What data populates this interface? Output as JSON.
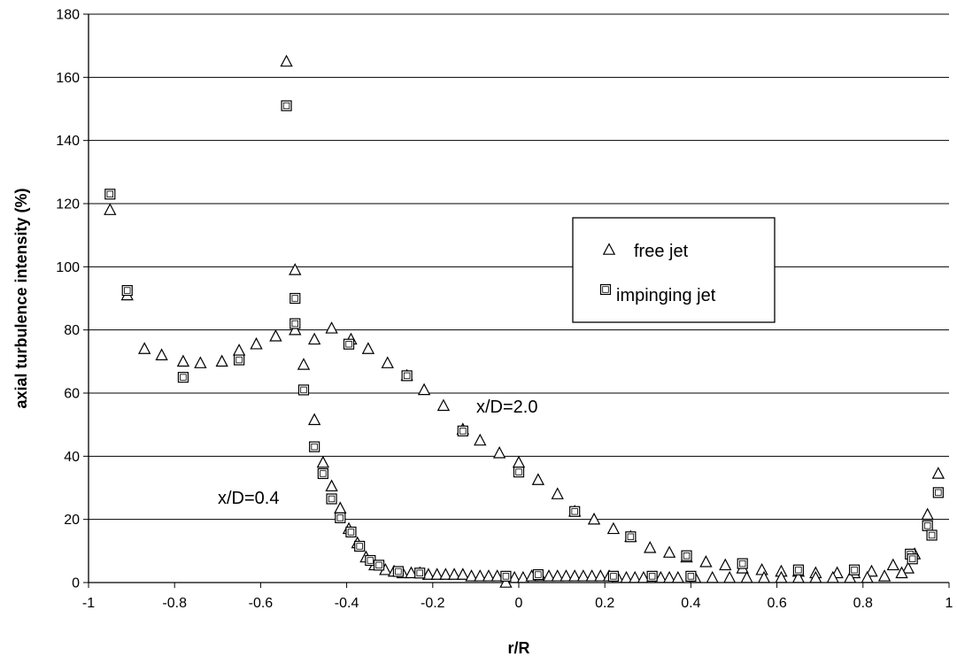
{
  "chart_data": {
    "type": "scatter",
    "title": "",
    "xlabel": "r/R",
    "ylabel": "axial turbulence intensity (%)",
    "xlim": [
      -1,
      1
    ],
    "ylim": [
      0,
      180
    ],
    "xticks": [
      "-1",
      "-0.8",
      "-0.6",
      "-0.4",
      "-0.2",
      "0",
      "0.2",
      "0.4",
      "0.6",
      "0.8",
      "1"
    ],
    "yticks": [
      "0",
      "20",
      "40",
      "60",
      "80",
      "100",
      "120",
      "140",
      "160",
      "180"
    ],
    "grid": "horizontal",
    "legend_position": "right",
    "legend": [
      {
        "label": "free jet",
        "marker": "triangle"
      },
      {
        "label": "impinging jet",
        "marker": "square"
      }
    ],
    "annotations": [
      {
        "text": "x/D=2.0"
      },
      {
        "text": "x/D=0.4"
      }
    ],
    "series": [
      {
        "name": "free jet",
        "marker": "triangle",
        "points": [
          [
            -0.95,
            118
          ],
          [
            -0.91,
            91
          ],
          [
            -0.87,
            74
          ],
          [
            -0.83,
            72
          ],
          [
            -0.78,
            70
          ],
          [
            -0.74,
            69.5
          ],
          [
            -0.69,
            70
          ],
          [
            -0.65,
            73.5
          ],
          [
            -0.61,
            75.5
          ],
          [
            -0.565,
            78
          ],
          [
            -0.52,
            80
          ],
          [
            -0.475,
            77
          ],
          [
            -0.435,
            80.5
          ],
          [
            -0.39,
            77
          ],
          [
            -0.35,
            74
          ],
          [
            -0.305,
            69.5
          ],
          [
            -0.26,
            65.5
          ],
          [
            -0.22,
            61
          ],
          [
            -0.175,
            56
          ],
          [
            -0.13,
            48.5
          ],
          [
            -0.09,
            45
          ],
          [
            -0.045,
            41
          ],
          [
            0.0,
            38
          ],
          [
            0.045,
            32.5
          ],
          [
            0.09,
            28
          ],
          [
            0.13,
            22.5
          ],
          [
            0.175,
            20
          ],
          [
            0.22,
            17
          ],
          [
            0.26,
            14.5
          ],
          [
            0.305,
            11
          ],
          [
            0.35,
            9.5
          ],
          [
            0.39,
            8
          ],
          [
            0.435,
            6.5
          ],
          [
            0.48,
            5.5
          ],
          [
            0.52,
            4.5
          ],
          [
            0.565,
            4
          ],
          [
            0.61,
            3.5
          ],
          [
            0.65,
            3.5
          ],
          [
            0.69,
            3
          ],
          [
            0.74,
            3
          ],
          [
            0.78,
            3
          ],
          [
            0.82,
            3.5
          ],
          [
            0.87,
            5.5
          ],
          [
            0.905,
            4.5
          ],
          [
            0.95,
            21.5
          ],
          [
            0.975,
            34.5
          ],
          [
            -0.52,
            99
          ],
          [
            -0.5,
            69
          ],
          [
            -0.475,
            51.5
          ],
          [
            -0.455,
            38
          ],
          [
            -0.435,
            30.5
          ],
          [
            -0.415,
            23.5
          ],
          [
            -0.395,
            17
          ],
          [
            -0.375,
            12.5
          ],
          [
            -0.355,
            8
          ],
          [
            -0.335,
            5.5
          ],
          [
            -0.31,
            4
          ],
          [
            -0.29,
            3.5
          ],
          [
            -0.27,
            3
          ],
          [
            -0.25,
            3
          ],
          [
            -0.23,
            3
          ],
          [
            -0.21,
            2.5
          ],
          [
            -0.19,
            2.5
          ],
          [
            -0.17,
            2.5
          ],
          [
            -0.15,
            2.5
          ],
          [
            -0.13,
            2.5
          ],
          [
            -0.11,
            2
          ],
          [
            -0.09,
            2
          ],
          [
            -0.07,
            2
          ],
          [
            -0.05,
            2
          ],
          [
            -0.03,
            0
          ],
          [
            -0.01,
            1.5
          ],
          [
            0.01,
            1.5
          ],
          [
            0.03,
            2
          ],
          [
            0.05,
            2
          ],
          [
            0.07,
            2
          ],
          [
            0.09,
            2
          ],
          [
            0.11,
            2
          ],
          [
            0.13,
            2
          ],
          [
            0.15,
            2
          ],
          [
            0.17,
            2
          ],
          [
            0.19,
            2
          ],
          [
            0.21,
            2
          ],
          [
            0.23,
            1.5
          ],
          [
            0.25,
            1.5
          ],
          [
            0.27,
            1.5
          ],
          [
            0.29,
            1.5
          ],
          [
            0.31,
            1.5
          ],
          [
            0.33,
            1.5
          ],
          [
            0.35,
            1.5
          ],
          [
            0.37,
            1.5
          ],
          [
            0.41,
            1.5
          ],
          [
            0.45,
            1.5
          ],
          [
            0.49,
            1.5
          ],
          [
            0.53,
            1.5
          ],
          [
            0.57,
            1.5
          ],
          [
            0.61,
            1.5
          ],
          [
            0.65,
            1.5
          ],
          [
            0.69,
            1.5
          ],
          [
            0.73,
            1.5
          ],
          [
            0.77,
            1.5
          ],
          [
            0.81,
            1.5
          ],
          [
            0.85,
            2
          ],
          [
            0.89,
            3
          ],
          [
            0.92,
            9
          ]
        ]
      },
      {
        "name": "impinging jet",
        "marker": "square",
        "points": [
          [
            -0.95,
            123
          ],
          [
            -0.91,
            92.5
          ],
          [
            -0.78,
            65
          ],
          [
            -0.65,
            70.5
          ],
          [
            -0.395,
            75.5
          ],
          [
            -0.26,
            65.5
          ],
          [
            -0.13,
            48
          ],
          [
            0.0,
            35
          ],
          [
            0.13,
            22.5
          ],
          [
            0.26,
            14.5
          ],
          [
            0.39,
            8.5
          ],
          [
            0.52,
            6
          ],
          [
            0.65,
            4
          ],
          [
            0.78,
            4
          ],
          [
            0.91,
            9
          ],
          [
            0.95,
            18
          ],
          [
            0.96,
            15
          ],
          [
            0.975,
            28.5
          ],
          [
            -0.54,
            151
          ],
          [
            -0.52,
            90
          ],
          [
            -0.52,
            82
          ],
          [
            -0.5,
            61
          ],
          [
            -0.475,
            43
          ],
          [
            -0.455,
            34.5
          ],
          [
            -0.435,
            26.5
          ],
          [
            -0.415,
            20.5
          ],
          [
            -0.39,
            16
          ],
          [
            -0.37,
            11.5
          ],
          [
            -0.345,
            7
          ],
          [
            -0.325,
            5.5
          ],
          [
            -0.28,
            3.5
          ],
          [
            -0.23,
            3
          ],
          [
            -0.03,
            2
          ],
          [
            0.045,
            2.5
          ],
          [
            0.22,
            2
          ],
          [
            0.31,
            2
          ],
          [
            0.4,
            2
          ],
          [
            0.915,
            7.5
          ]
        ]
      },
      {
        "name": "",
        "marker": "triangle",
        "points": [
          [
            -0.54,
            165
          ]
        ]
      }
    ]
  }
}
